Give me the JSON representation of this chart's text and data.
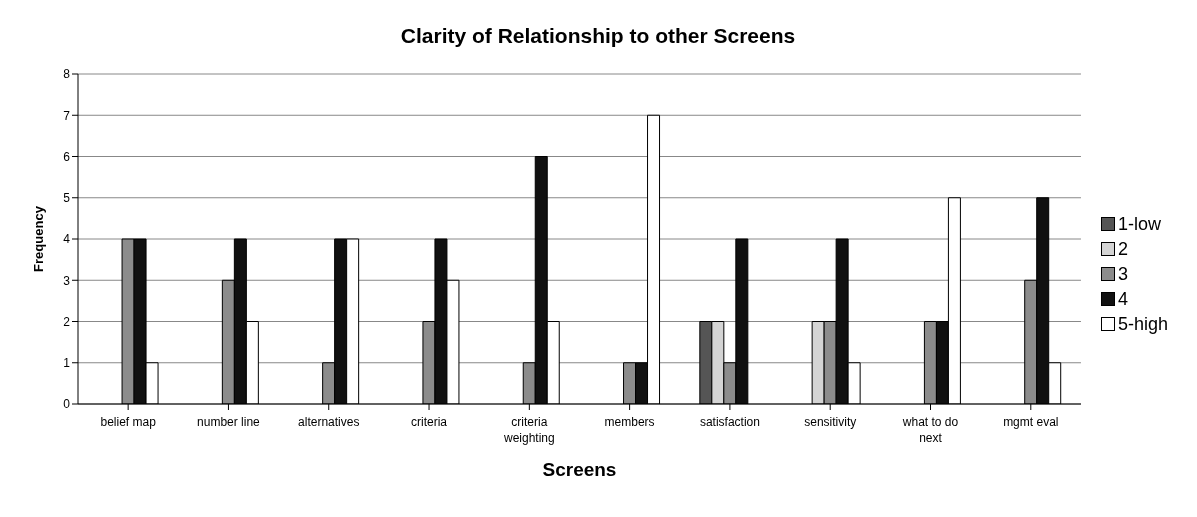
{
  "chart_data": {
    "type": "bar",
    "title": "Clarity of Relationship to other Screens",
    "xlabel": "Screens",
    "ylabel": "Frequency",
    "categories": [
      "belief map",
      "number line",
      "alternatives",
      "criteria",
      "criteria weighting",
      "members",
      "satisfaction",
      "sensitivity",
      "what to do next",
      "mgmt eval"
    ],
    "series": [
      {
        "name": "1-low",
        "color": "#555555",
        "values": [
          0,
          0,
          0,
          0,
          0,
          0,
          2,
          0,
          0,
          0
        ]
      },
      {
        "name": "2",
        "color": "#d4d4d4",
        "values": [
          0,
          0,
          0,
          0,
          0,
          0,
          2,
          2,
          0,
          0
        ]
      },
      {
        "name": "3",
        "color": "#8c8c8c",
        "values": [
          4,
          3,
          1,
          2,
          1,
          1,
          1,
          2,
          2,
          3
        ]
      },
      {
        "name": "4",
        "color": "#111111",
        "values": [
          4,
          4,
          4,
          4,
          6,
          1,
          4,
          4,
          2,
          5
        ]
      },
      {
        "name": "5-high",
        "color": "#ffffff",
        "values": [
          1,
          2,
          4,
          3,
          2,
          7,
          0,
          1,
          5,
          1
        ]
      }
    ],
    "ylim": [
      0,
      8
    ],
    "yticks": [
      0,
      1,
      2,
      3,
      4,
      5,
      6,
      7,
      8
    ],
    "grid": "y",
    "legend": "right"
  }
}
